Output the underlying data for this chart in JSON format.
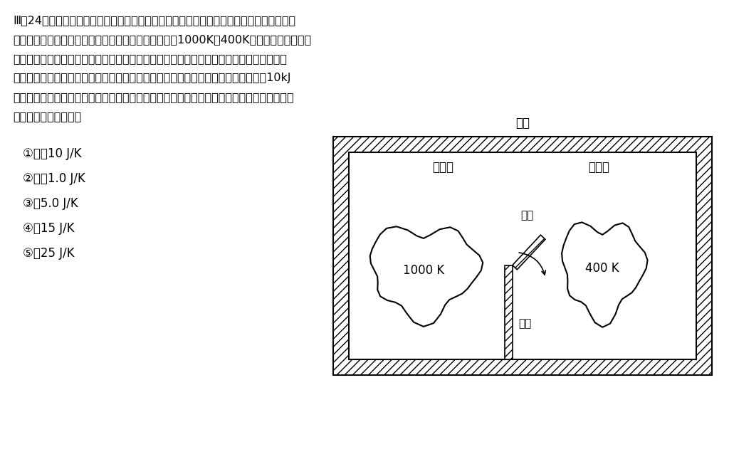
{
  "bg_color": "#ffffff",
  "text_color": "#000000",
  "diagram_label": "容器",
  "room1_label": "部屋１",
  "room2_label": "部屋２",
  "temp1_label": "1000 K",
  "temp2_label": "400 K",
  "door_label": "ドア",
  "wall_label": "隔壁",
  "question_lines": [
    "Ⅲ－24　下図のように，断熱された容器が熱を通さない隔壁と開閉できるドアで２つの部",
    "屋に仕切られている。それぞれの部屋の中には温度が1000Kと400Kの物体が置かれてい",
    "る。これら２つの物体の熱容量は十分大きいため，それぞれの温度変化は無視できるもの",
    "とする。はじめは閉まっていたドアをある時刻に開いて，高温物体から低温物体へ10kJ",
    "の熱が移動したところでドアを閉めた。このとき，容器全体のエントロピー変化量として，",
    "最も近い値はどれか。"
  ],
  "choices": [
    "①　－10 J/K",
    "②　－1.0 J/K",
    "③　5.0 J/K",
    "④　15 J/K",
    "⑤　25 J/K"
  ]
}
